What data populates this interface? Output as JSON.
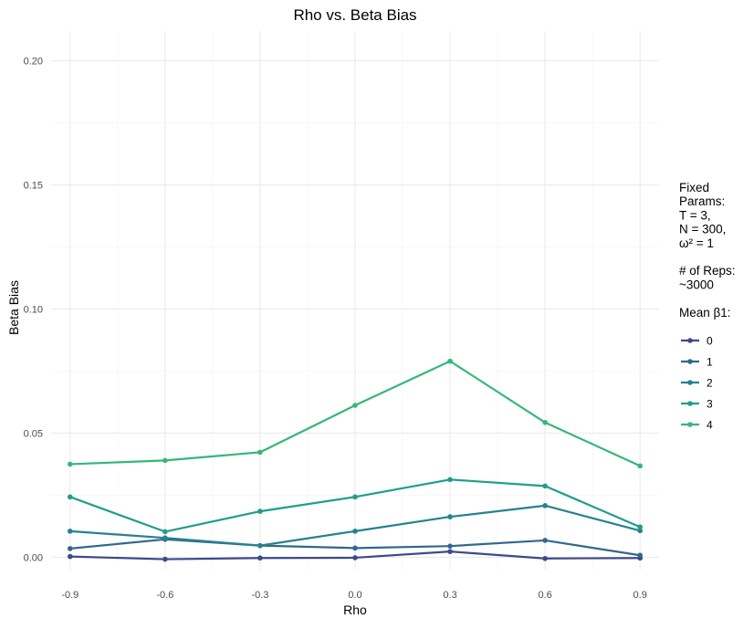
{
  "chart_data": {
    "type": "line",
    "title": "Rho vs. Beta Bias",
    "xlabel": "Rho",
    "ylabel": "Beta Bias",
    "x": [
      -0.9,
      -0.6,
      -0.3,
      0.0,
      0.3,
      0.6,
      0.9
    ],
    "x_tick_labels": [
      "-0.9",
      "-0.6",
      "-0.3",
      "0.0",
      "0.3",
      "0.6",
      "0.9"
    ],
    "y_ticks": [
      0.0,
      0.05,
      0.1,
      0.15,
      0.2
    ],
    "y_tick_labels": [
      "0.00",
      "0.05",
      "0.10",
      "0.15",
      "0.20"
    ],
    "xlim": [
      -0.96,
      0.96
    ],
    "ylim": [
      -0.005,
      0.212
    ],
    "grid": true,
    "legend_position": "right",
    "legend_lines": [
      "Fixed",
      "Params:",
      "T = 3,",
      "N = 300,",
      "ω² = 1",
      "",
      "# of Reps:",
      "~3000",
      "",
      "Mean β1:"
    ],
    "series": [
      {
        "name": "0",
        "color": "#3e4989",
        "values": [
          0.0003,
          -0.0008,
          -0.0003,
          -0.0002,
          0.0023,
          -0.0005,
          -0.0003
        ]
      },
      {
        "name": "1",
        "color": "#31688e",
        "values": [
          0.0035,
          0.0072,
          0.0047,
          0.0037,
          0.0045,
          0.0068,
          0.0008
        ]
      },
      {
        "name": "2",
        "color": "#26828e",
        "values": [
          0.0105,
          0.0078,
          0.0047,
          0.0105,
          0.0163,
          0.0208,
          0.0107
        ]
      },
      {
        "name": "3",
        "color": "#1f9e89",
        "values": [
          0.0243,
          0.0103,
          0.0185,
          0.0243,
          0.0313,
          0.0287,
          0.0122
        ]
      },
      {
        "name": "4",
        "color": "#35b779",
        "values": [
          0.0375,
          0.039,
          0.0423,
          0.0612,
          0.079,
          0.0543,
          0.0368
        ]
      }
    ]
  }
}
